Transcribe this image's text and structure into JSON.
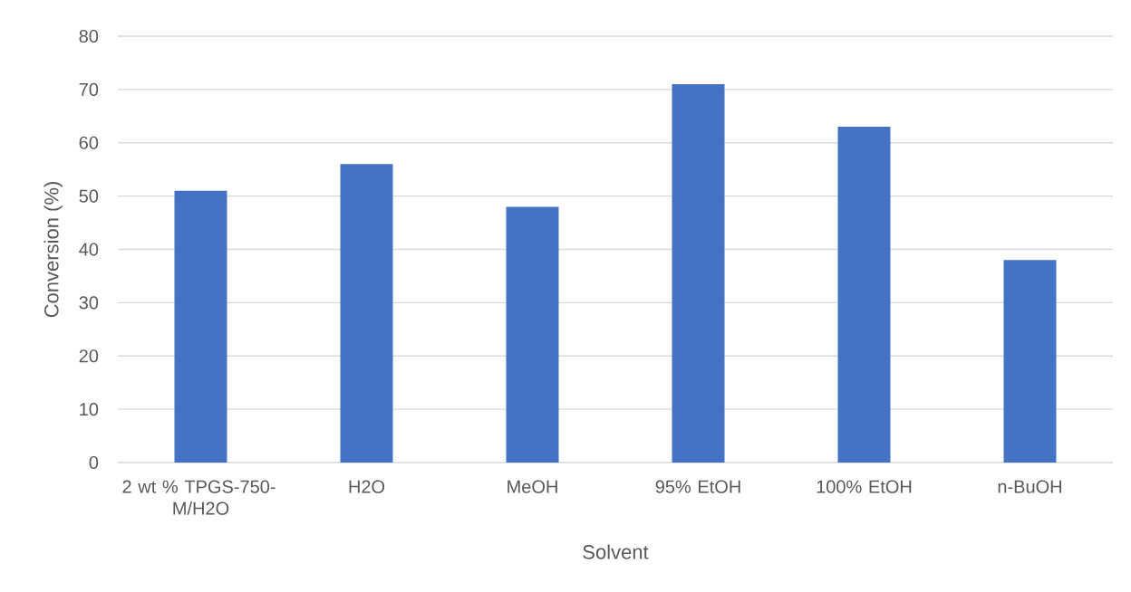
{
  "chart_data": {
    "type": "bar",
    "xlabel": "Solvent",
    "ylabel": "Conversion (%)",
    "categories": [
      "2 wt % TPGS-750-M/H2O",
      "H2O",
      "MeOH",
      "95% EtOH",
      "100% EtOH",
      "n-BuOH"
    ],
    "values": [
      51,
      56,
      48,
      71,
      63,
      38
    ],
    "color": "#4472c4",
    "ylim": [
      0,
      80
    ],
    "yticks": [
      0,
      10,
      20,
      30,
      40,
      50,
      60,
      70,
      80
    ],
    "grid": "y"
  }
}
